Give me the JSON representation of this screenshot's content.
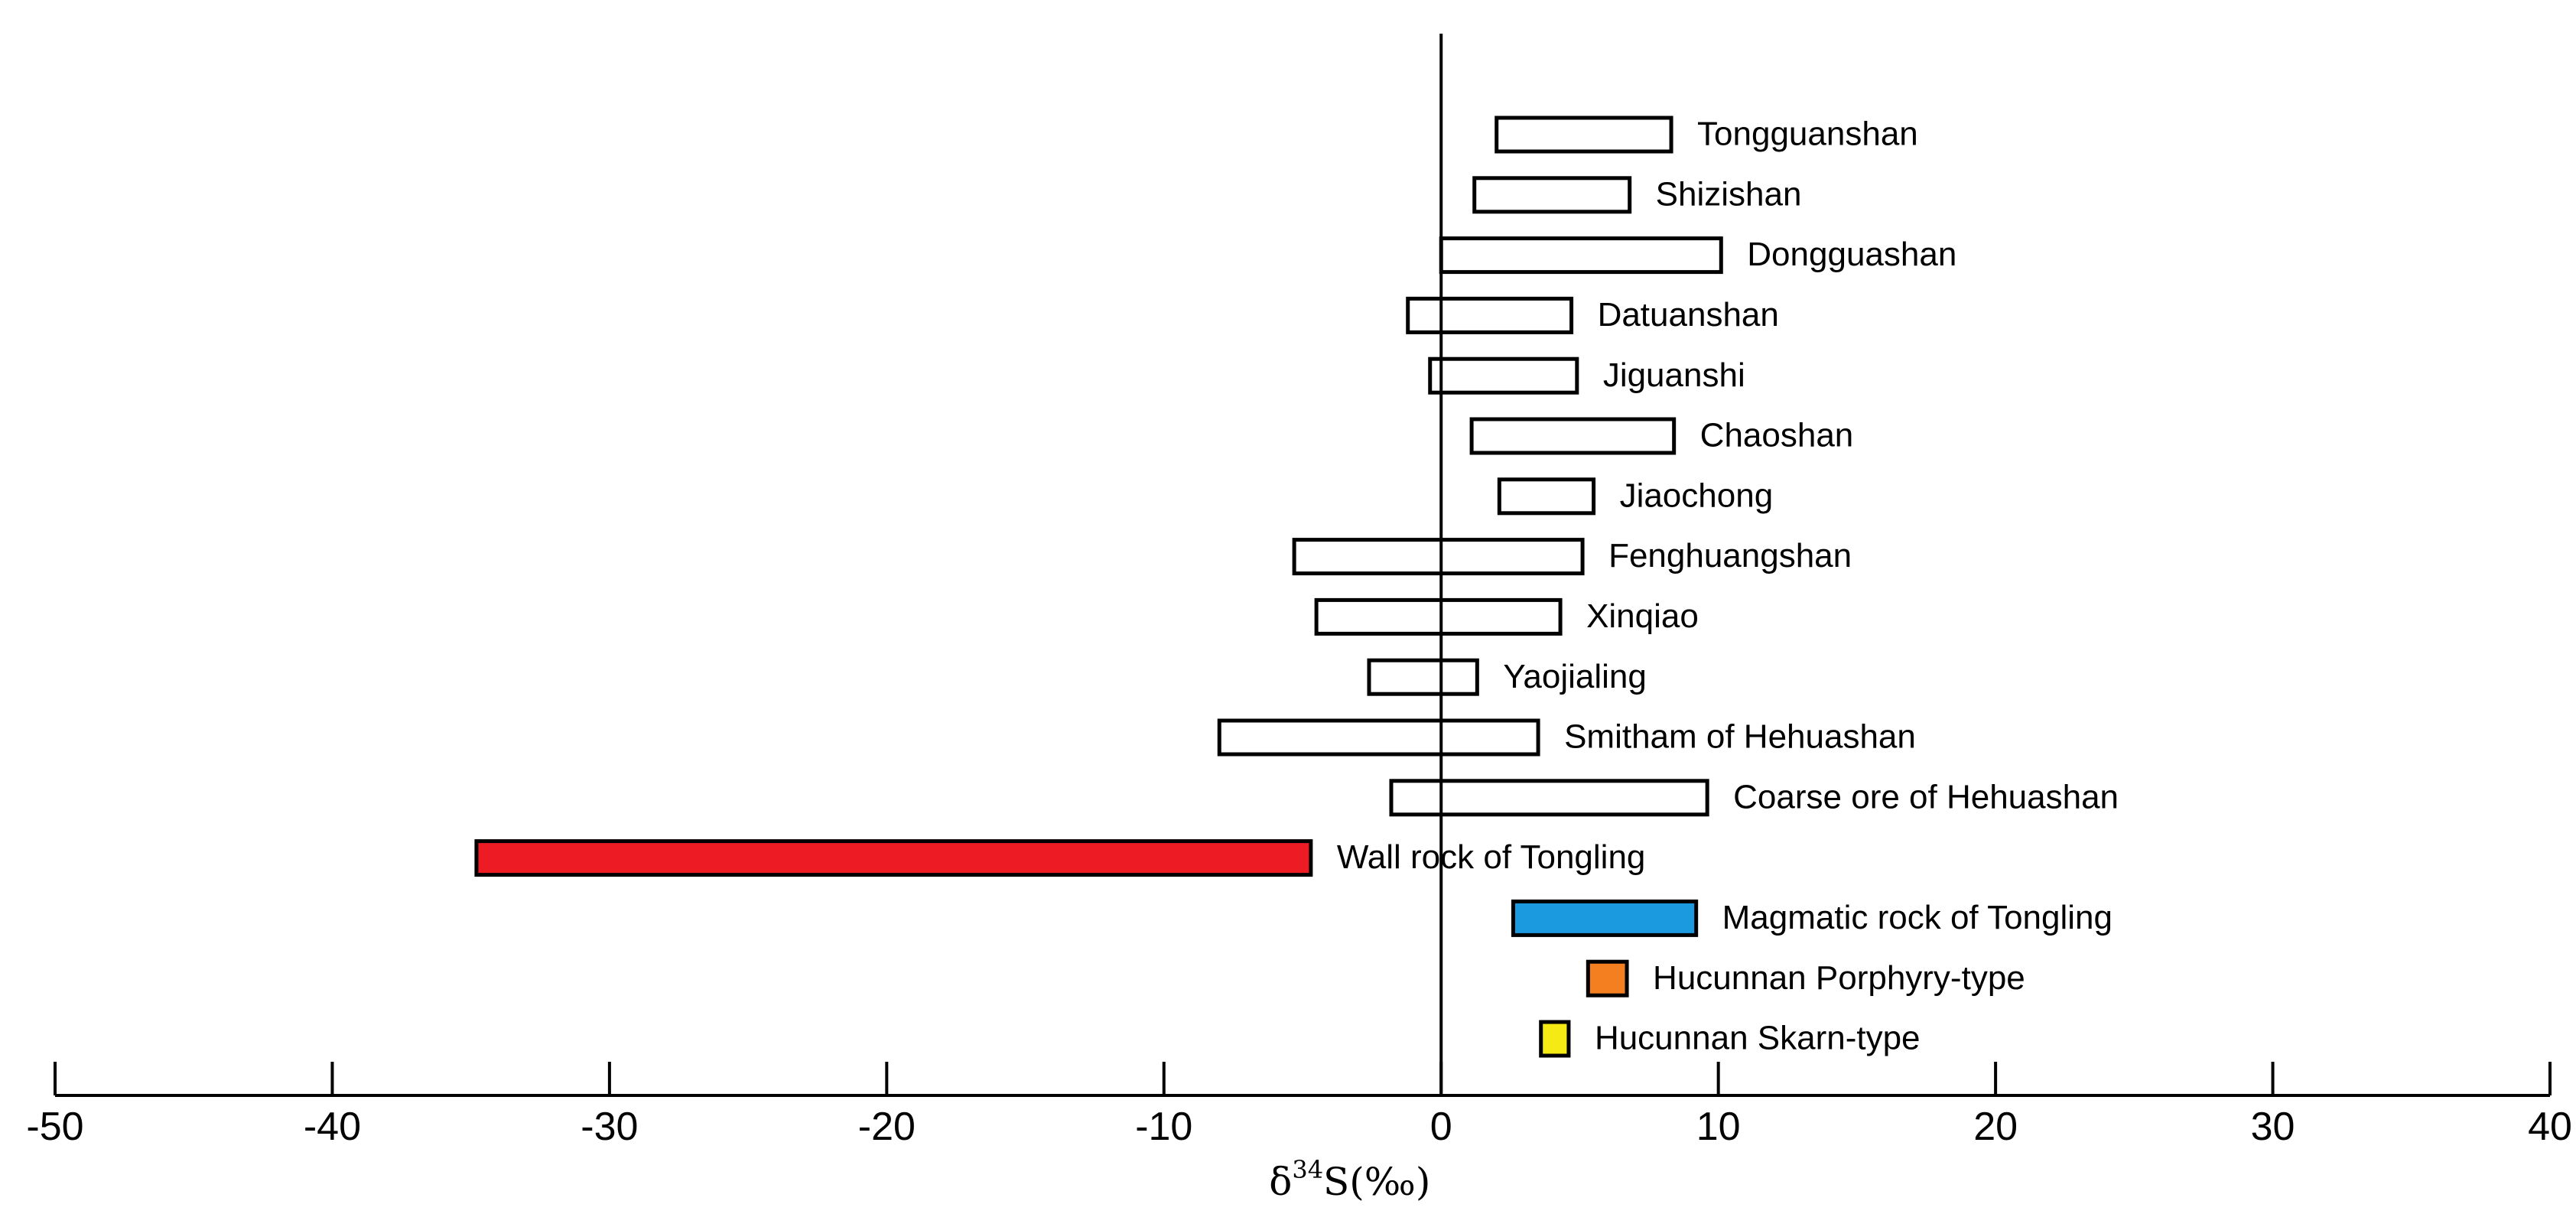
{
  "chart_data": {
    "type": "bar",
    "orientation": "horizontal-range",
    "title": "",
    "xlabel": {
      "delta": "δ",
      "superscript": "34",
      "rest": "S(‰)"
    },
    "xlim": [
      -50,
      40
    ],
    "xticks": [
      -50,
      -40,
      -30,
      -20,
      -10,
      0,
      10,
      20,
      30,
      40
    ],
    "grid": false,
    "series": [
      {
        "name": "Tongguanshan",
        "min": 2,
        "max": 8.3,
        "fill": "#ffffff"
      },
      {
        "name": "Shizishan",
        "min": 1.2,
        "max": 6.8,
        "fill": "#ffffff"
      },
      {
        "name": "Dongguashan",
        "min": 0,
        "max": 10.1,
        "fill": "#ffffff"
      },
      {
        "name": "Datuanshan",
        "min": -1.2,
        "max": 4.7,
        "fill": "#ffffff"
      },
      {
        "name": "Jiguanshi",
        "min": -0.4,
        "max": 4.9,
        "fill": "#ffffff"
      },
      {
        "name": "Chaoshan",
        "min": 1.1,
        "max": 8.4,
        "fill": "#ffffff"
      },
      {
        "name": "Jiaochong",
        "min": 2.1,
        "max": 5.5,
        "fill": "#ffffff"
      },
      {
        "name": "Fenghuangshan",
        "min": -5.3,
        "max": 5.1,
        "fill": "#ffffff"
      },
      {
        "name": "Xinqiao",
        "min": -4.5,
        "max": 4.3,
        "fill": "#ffffff"
      },
      {
        "name": "Yaojialing",
        "min": -2.6,
        "max": 1.3,
        "fill": "#ffffff"
      },
      {
        "name": "Smitham of Hehuashan",
        "min": -8,
        "max": 3.5,
        "fill": "#ffffff"
      },
      {
        "name": "Coarse ore of Hehuashan",
        "min": -1.8,
        "max": 9.6,
        "fill": "#ffffff"
      },
      {
        "name": "Wall rock of Tongling",
        "min": -34.8,
        "max": -4.7,
        "fill": "#ed1c24"
      },
      {
        "name": "Magmatic rock of Tongling",
        "min": 2.6,
        "max": 9.2,
        "fill": "#1b9ae0"
      },
      {
        "name": "Hucunnan Porphyry-type",
        "min": 5.3,
        "max": 6.7,
        "fill": "#f47f20"
      },
      {
        "name": "Hucunnan Skarn-type",
        "min": 3.6,
        "max": 4.6,
        "fill": "#f5ea14"
      }
    ]
  }
}
